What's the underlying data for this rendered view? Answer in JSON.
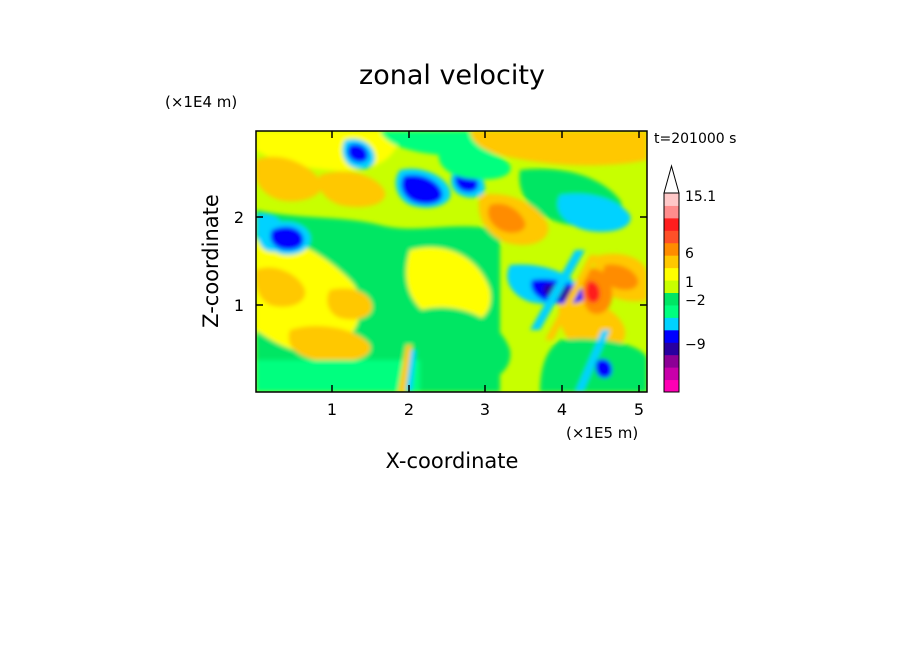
{
  "chart_data": {
    "type": "heatmap",
    "title": "zonal velocity",
    "xlabel": "X-coordinate",
    "ylabel": "Z-coordinate",
    "x_unit": "(×1E5 m)",
    "y_unit": "(×1E4 m)",
    "time_label": "t=201000 s",
    "xlim": [
      0,
      5.1
    ],
    "ylim": [
      0,
      2.95
    ],
    "x_ticks": [
      "1",
      "2",
      "3",
      "4",
      "5"
    ],
    "y_ticks": [
      "1",
      "2"
    ],
    "colorbar": {
      "levels": [
        -15,
        -12,
        -9,
        -6,
        -4,
        -2,
        -1,
        0,
        1,
        2,
        4,
        6,
        9,
        12,
        15.1
      ],
      "colors": [
        "#ff00b4",
        "#c800aa",
        "#8c0096",
        "#2800a0",
        "#0000ff",
        "#00d2ff",
        "#00ff7f",
        "#00e664",
        "#c8ff00",
        "#ffff00",
        "#ffc800",
        "#ff8c00",
        "#ff5028",
        "#ff1e1e",
        "#ff8c8c",
        "#ffc8c8"
      ],
      "labels": [
        "15.1",
        "6",
        "1",
        "−2",
        "−9"
      ],
      "extend": "max"
    },
    "features": [
      {
        "x": 3.9,
        "z": 1.3,
        "u": -9
      },
      {
        "x": 4.3,
        "z": 1.2,
        "u": 12
      },
      {
        "x": 2.2,
        "z": 2.3,
        "u": -6
      },
      {
        "x": 2.7,
        "z": 2.4,
        "u": -5
      },
      {
        "x": 0.35,
        "z": 1.85,
        "u": -6
      },
      {
        "x": 1.3,
        "z": 2.65,
        "u": -5
      }
    ]
  }
}
